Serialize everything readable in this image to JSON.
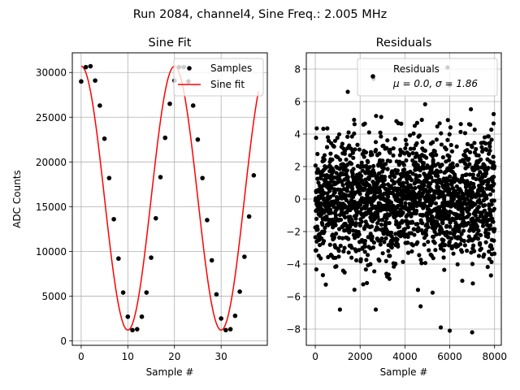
{
  "suptitle": "Run 2084, channel4, Sine Freq.: 2.005 MHz",
  "colors": {
    "samples": "#000000",
    "fit": "#ff0000",
    "grid": "#b0b0b0"
  },
  "chart_data": [
    {
      "id": "fit",
      "type": "line",
      "title": "Sine Fit",
      "xlabel": "Sample #",
      "ylabel": "ADC Counts",
      "xlim": [
        -1.9,
        39.9
      ],
      "ylim": [
        -500,
        32200
      ],
      "xticks": [
        0,
        10,
        20,
        30
      ],
      "xtick_labels": [
        "0",
        "10",
        "20",
        "30"
      ],
      "yticks": [
        0,
        5000,
        10000,
        15000,
        20000,
        25000,
        30000
      ],
      "ytick_labels": [
        "0",
        "5000",
        "10000",
        "15000",
        "20000",
        "25000",
        "30000"
      ],
      "grid": true,
      "legend_position": "top-right",
      "series": [
        {
          "name": "Samples",
          "style": "points",
          "x": [
            0,
            1,
            2,
            3,
            4,
            5,
            6,
            7,
            8,
            9,
            10,
            11,
            12,
            13,
            14,
            15,
            16,
            17,
            18,
            19,
            20,
            21,
            22,
            23,
            24,
            25,
            26,
            27,
            28,
            29,
            30,
            31,
            32,
            33,
            34,
            35,
            36,
            37
          ],
          "y": [
            29000,
            30600,
            30700,
            29100,
            26300,
            22600,
            18200,
            13600,
            9200,
            5400,
            2700,
            1200,
            1300,
            2700,
            5400,
            9300,
            13700,
            18300,
            22700,
            26500,
            29100,
            30600,
            30600,
            29000,
            26300,
            22500,
            18200,
            13500,
            9000,
            5200,
            2500,
            1200,
            1300,
            2800,
            5500,
            9400,
            13900,
            18500
          ]
        },
        {
          "name": "Sine fit",
          "style": "line",
          "x_range": [
            0,
            38
          ],
          "amplitude": 14750,
          "offset": 15950,
          "period": 20.0,
          "phase": 1.57
        }
      ]
    },
    {
      "id": "resid",
      "type": "scatter",
      "title": "Residuals",
      "xlabel": "Sample #",
      "ylim": [
        -9,
        9
      ],
      "xlim": [
        -400,
        8300
      ],
      "xticks": [
        0,
        2000,
        4000,
        6000,
        8000
      ],
      "xtick_labels": [
        "0",
        "2000",
        "4000",
        "6000",
        "8000"
      ],
      "yticks": [
        -8,
        -6,
        -4,
        -2,
        0,
        2,
        4,
        6,
        8
      ],
      "ytick_labels": [
        "−8",
        "−6",
        "−4",
        "−2",
        "0",
        "2",
        "4",
        "6",
        "8"
      ],
      "grid": true,
      "legend_position": "top-right",
      "series": [
        {
          "name": "Residuals",
          "stats_label": "μ = 0.0, σ = 1.86",
          "n_points": 8000,
          "mean": 0.0,
          "std": 1.86,
          "outliers": [
            [
              1450,
              6.6
            ],
            [
              2600,
              7.4
            ],
            [
              5900,
              8.1
            ],
            [
              6000,
              7.0
            ],
            [
              5600,
              -7.9
            ],
            [
              6000,
              -8.1
            ],
            [
              7000,
              -8.2
            ],
            [
              1100,
              -6.8
            ],
            [
              4700,
              -6.6
            ],
            [
              2700,
              -6.8
            ]
          ]
        }
      ]
    }
  ]
}
